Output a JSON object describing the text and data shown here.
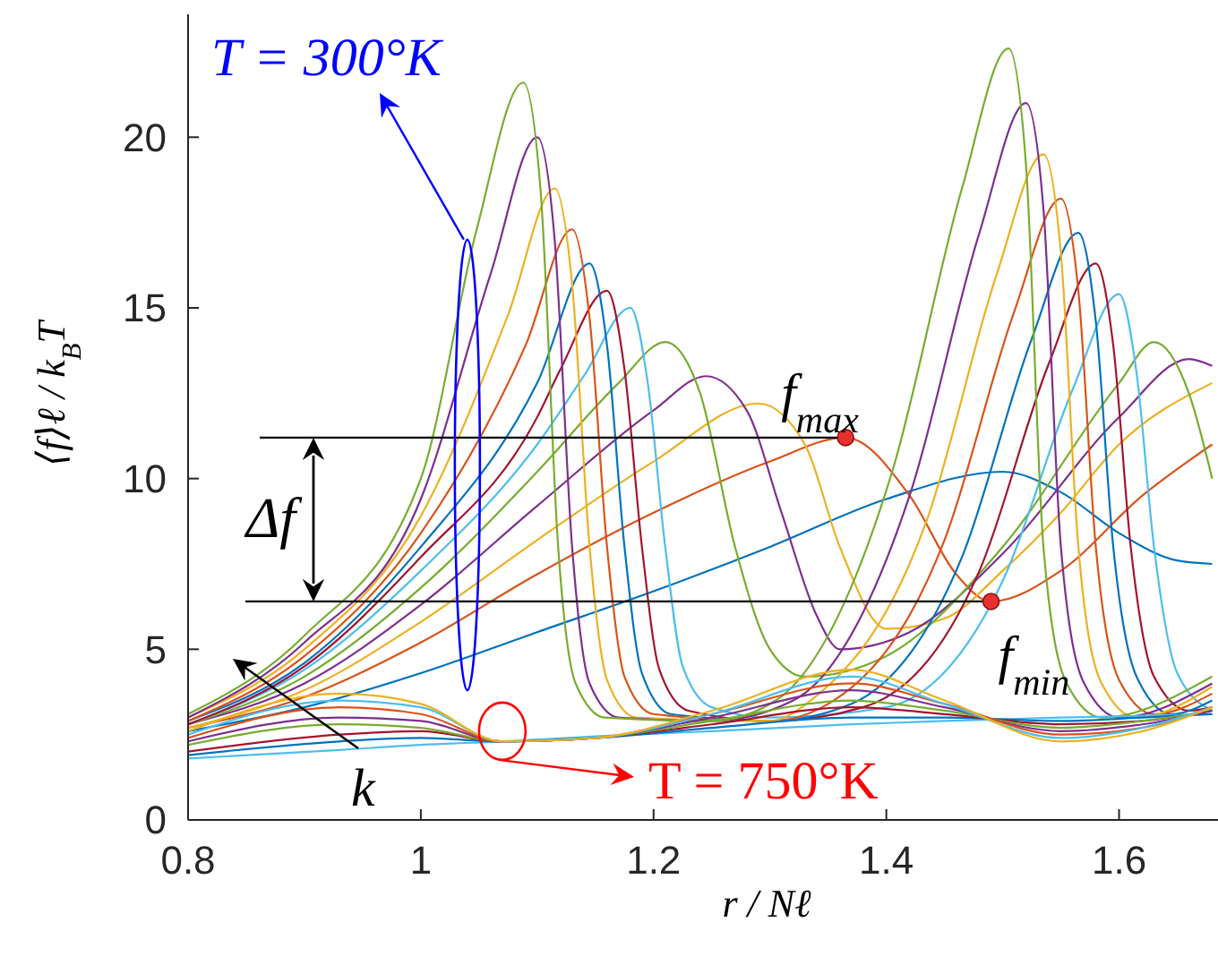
{
  "chart_data": {
    "type": "line",
    "xlabel": "r / Nℓ",
    "ylabel": "⟨f⟩ℓ / k$_{B}$T",
    "xlim": [
      0.8,
      1.685
    ],
    "ylim": [
      0,
      23.6
    ],
    "xticks": [
      0.8,
      1,
      1.2,
      1.4,
      1.6
    ],
    "yticks": [
      0,
      5,
      10,
      15,
      20
    ],
    "grid": false,
    "ref_lines": [
      {
        "axis": "y",
        "value": 11.2,
        "color": "#000000"
      },
      {
        "axis": "y",
        "value": 6.4,
        "color": "#000000"
      }
    ],
    "annotations": [
      {
        "text": "T = 300°K",
        "x": 1.04,
        "y": 17
      },
      {
        "text": "T = 750°K",
        "x": 1.07,
        "y": 2.6
      },
      "Δf",
      "k",
      {
        "text": "f$_{max}$",
        "x": 1.365,
        "y": 11.2
      },
      {
        "text": "f$_{min}$",
        "x": 1.49,
        "y": 6.4
      }
    ],
    "series": [
      {
        "color": "#0072bd",
        "x": [
          0.8,
          0.9,
          1.0,
          1.1,
          1.2,
          1.3,
          1.4,
          1.5,
          1.55,
          1.6,
          1.65,
          1.68
        ],
        "values": [
          2.6,
          3.3,
          4.3,
          5.5,
          6.7,
          8.0,
          9.4,
          10.2,
          9.6,
          8.4,
          7.6,
          7.5
        ]
      },
      {
        "color": "#d95319",
        "x": [
          0.8,
          0.9,
          1.0,
          1.1,
          1.2,
          1.3,
          1.365,
          1.42,
          1.46,
          1.49,
          1.55,
          1.62,
          1.68
        ],
        "values": [
          2.7,
          3.6,
          5.2,
          7.2,
          9.0,
          10.5,
          11.2,
          9.5,
          7.2,
          6.4,
          7.3,
          9.5,
          11.0
        ]
      },
      {
        "color": "#edb120",
        "x": [
          0.8,
          0.9,
          1.0,
          1.1,
          1.2,
          1.29,
          1.33,
          1.36,
          1.4,
          1.45,
          1.5,
          1.55,
          1.6,
          1.68
        ],
        "values": [
          2.7,
          3.8,
          5.8,
          8.2,
          10.5,
          12.2,
          11.0,
          8.0,
          5.6,
          5.9,
          7.3,
          9.0,
          11.0,
          12.8
        ]
      },
      {
        "color": "#7e2f8e",
        "x": [
          0.8,
          0.9,
          1.0,
          1.1,
          1.2,
          1.245,
          1.28,
          1.31,
          1.34,
          1.36,
          1.42,
          1.5,
          1.6,
          1.66,
          1.68
        ],
        "values": [
          2.8,
          4.0,
          6.3,
          9.2,
          12.0,
          13.0,
          12.0,
          9.0,
          6.0,
          5.0,
          5.5,
          7.8,
          11.8,
          13.5,
          13.3
        ]
      },
      {
        "color": "#77ac30",
        "x": [
          0.8,
          0.9,
          1.0,
          1.1,
          1.17,
          1.21,
          1.24,
          1.27,
          1.3,
          1.33,
          1.4,
          1.5,
          1.6,
          1.63,
          1.66,
          1.68
        ],
        "values": [
          2.8,
          4.2,
          6.8,
          10.2,
          12.8,
          14.0,
          12.5,
          8.0,
          5.0,
          4.2,
          4.8,
          8.0,
          12.8,
          14.0,
          12.5,
          10.0
        ]
      },
      {
        "color": "#4dbeee",
        "x": [
          0.8,
          0.9,
          1.0,
          1.1,
          1.14,
          1.18,
          1.195,
          1.21,
          1.225,
          1.25,
          1.3,
          1.4,
          1.5,
          1.56,
          1.6,
          1.615,
          1.63,
          1.65,
          1.68
        ],
        "values": [
          2.8,
          4.4,
          7.3,
          11.0,
          13.0,
          15.0,
          12.8,
          8.0,
          4.5,
          3.3,
          3.0,
          3.3,
          7.0,
          12.6,
          15.4,
          13.1,
          8.0,
          4.3,
          3.2
        ]
      },
      {
        "color": "#a2142f",
        "x": [
          0.8,
          0.9,
          1.0,
          1.1,
          1.12,
          1.16,
          1.175,
          1.19,
          1.205,
          1.23,
          1.3,
          1.38,
          1.48,
          1.54,
          1.58,
          1.595,
          1.61,
          1.63,
          1.66,
          1.68
        ],
        "values": [
          2.8,
          4.5,
          7.7,
          11.8,
          13.2,
          15.5,
          13.2,
          8.0,
          4.4,
          3.2,
          2.9,
          3.3,
          7.3,
          13.4,
          16.3,
          13.9,
          8.0,
          4.2,
          3.2,
          3.3
        ]
      },
      {
        "color": "#0072bd",
        "x": [
          0.8,
          0.9,
          1.0,
          1.1,
          1.145,
          1.16,
          1.175,
          1.19,
          1.215,
          1.3,
          1.37,
          1.465,
          1.525,
          1.565,
          1.58,
          1.595,
          1.615,
          1.645,
          1.68
        ],
        "values": [
          2.9,
          4.6,
          8.0,
          12.8,
          16.3,
          13.9,
          8.0,
          4.3,
          3.1,
          2.9,
          3.4,
          7.7,
          14.1,
          17.2,
          14.6,
          8.0,
          4.2,
          3.1,
          3.5
        ]
      },
      {
        "color": "#d95319",
        "x": [
          0.8,
          0.9,
          1.0,
          1.09,
          1.13,
          1.145,
          1.16,
          1.175,
          1.2,
          1.3,
          1.35,
          1.45,
          1.51,
          1.55,
          1.565,
          1.58,
          1.6,
          1.63,
          1.68
        ],
        "values": [
          2.9,
          4.8,
          8.4,
          13.9,
          17.3,
          14.7,
          8.0,
          4.2,
          3.1,
          2.9,
          3.4,
          8.2,
          14.9,
          18.2,
          15.5,
          8.0,
          4.1,
          3.1,
          3.7
        ]
      },
      {
        "color": "#edb120",
        "x": [
          0.8,
          0.9,
          1.0,
          1.075,
          1.115,
          1.13,
          1.145,
          1.16,
          1.185,
          1.3,
          1.335,
          1.435,
          1.495,
          1.535,
          1.55,
          1.565,
          1.585,
          1.615,
          1.68
        ],
        "values": [
          3.0,
          5.0,
          8.9,
          14.8,
          18.5,
          15.7,
          8.0,
          4.1,
          3.0,
          2.9,
          3.5,
          8.8,
          16.0,
          19.5,
          16.6,
          8.0,
          4.0,
          3.0,
          3.9
        ]
      },
      {
        "color": "#7e2f8e",
        "x": [
          0.8,
          0.9,
          1.0,
          1.06,
          1.1,
          1.115,
          1.13,
          1.145,
          1.17,
          1.25,
          1.32,
          1.42,
          1.48,
          1.52,
          1.535,
          1.55,
          1.57,
          1.6,
          1.68
        ],
        "values": [
          3.0,
          5.2,
          9.4,
          16.0,
          20.0,
          17.0,
          8.0,
          4.0,
          3.0,
          2.9,
          3.5,
          9.5,
          17.2,
          21.0,
          17.9,
          8.0,
          4.0,
          3.0,
          4.0
        ]
      },
      {
        "color": "#77ac30",
        "x": [
          0.8,
          0.9,
          1.0,
          1.048,
          1.088,
          1.103,
          1.118,
          1.133,
          1.158,
          1.25,
          1.305,
          1.405,
          1.465,
          1.505,
          1.52,
          1.535,
          1.555,
          1.585,
          1.68
        ],
        "values": [
          3.1,
          5.4,
          10.0,
          17.3,
          21.6,
          18.4,
          8.0,
          4.0,
          3.0,
          2.9,
          3.5,
          10.2,
          18.5,
          22.6,
          19.2,
          8.0,
          4.0,
          3.0,
          4.2
        ]
      },
      {
        "color": "#4dbeee",
        "x": [
          0.8,
          0.93,
          1.0,
          1.07,
          1.15,
          1.25,
          1.37,
          1.45,
          1.55,
          1.62,
          1.68
        ],
        "values": [
          1.8,
          2.05,
          2.2,
          2.3,
          2.45,
          2.6,
          2.8,
          2.9,
          3.0,
          3.05,
          3.1
        ]
      },
      {
        "color": "#0072bd",
        "x": [
          0.8,
          0.93,
          1.0,
          1.07,
          1.15,
          1.25,
          1.37,
          1.45,
          1.55,
          1.62,
          1.68
        ],
        "values": [
          1.9,
          2.3,
          2.4,
          2.3,
          2.4,
          2.7,
          3.0,
          3.0,
          2.9,
          3.0,
          3.1
        ]
      },
      {
        "color": "#a2142f",
        "x": [
          0.8,
          0.93,
          1.0,
          1.07,
          1.15,
          1.25,
          1.37,
          1.45,
          1.55,
          1.62,
          1.68
        ],
        "values": [
          2.0,
          2.5,
          2.6,
          2.3,
          2.4,
          2.8,
          3.3,
          3.1,
          2.8,
          2.9,
          3.2
        ]
      },
      {
        "color": "#77ac30",
        "x": [
          0.8,
          0.93,
          1.0,
          1.07,
          1.15,
          1.25,
          1.37,
          1.45,
          1.55,
          1.62,
          1.68
        ],
        "values": [
          2.2,
          2.8,
          2.7,
          2.3,
          2.4,
          2.9,
          3.5,
          3.2,
          2.7,
          2.9,
          3.2
        ]
      },
      {
        "color": "#7e2f8e",
        "x": [
          0.8,
          0.93,
          1.0,
          1.07,
          1.15,
          1.25,
          1.37,
          1.45,
          1.55,
          1.62,
          1.68
        ],
        "values": [
          2.3,
          3.0,
          2.9,
          2.3,
          2.4,
          3.0,
          3.8,
          3.3,
          2.6,
          2.8,
          3.2
        ]
      },
      {
        "color": "#d95319",
        "x": [
          0.8,
          0.93,
          1.0,
          1.07,
          1.15,
          1.25,
          1.37,
          1.45,
          1.55,
          1.62,
          1.68
        ],
        "values": [
          2.4,
          3.3,
          3.1,
          2.3,
          2.4,
          3.1,
          4.0,
          3.4,
          2.5,
          2.7,
          3.3
        ]
      },
      {
        "color": "#4dbeee",
        "x": [
          0.8,
          0.93,
          1.0,
          1.07,
          1.15,
          1.25,
          1.37,
          1.45,
          1.55,
          1.62,
          1.68
        ],
        "values": [
          2.5,
          3.5,
          3.3,
          2.3,
          2.4,
          3.1,
          4.2,
          3.4,
          2.4,
          2.7,
          3.3
        ]
      },
      {
        "color": "#edb120",
        "x": [
          0.8,
          0.93,
          1.0,
          1.07,
          1.15,
          1.25,
          1.37,
          1.45,
          1.55,
          1.62,
          1.68
        ],
        "values": [
          2.6,
          3.7,
          3.4,
          2.3,
          2.4,
          3.2,
          4.4,
          3.5,
          2.3,
          2.6,
          3.3
        ]
      },
      {
        "type": "scatter",
        "marker": "circle",
        "color": "#e8312f",
        "x": [
          1.365,
          1.49
        ],
        "values": [
          11.2,
          6.4
        ]
      }
    ]
  }
}
